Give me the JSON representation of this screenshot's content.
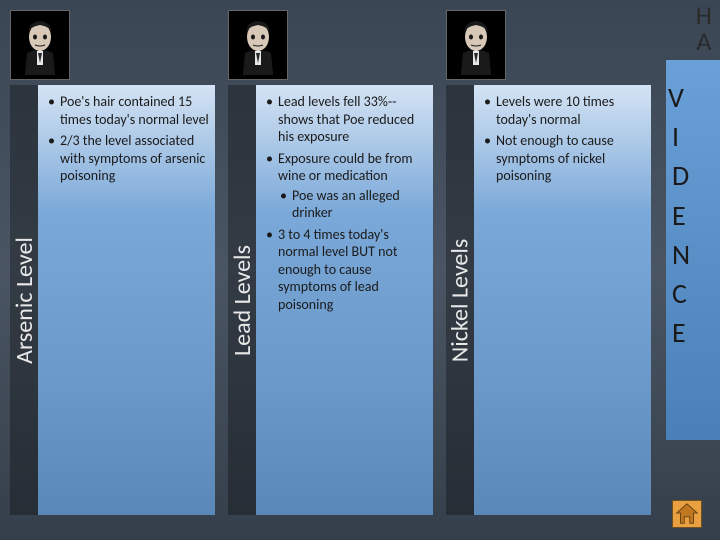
{
  "colors": {
    "page_bg_top": "#3a4654",
    "page_bg_bottom": "#353f4b",
    "column_gradient_top": "#d4e3f4",
    "column_gradient_bottom": "#5a88b8",
    "label_bg": "rgba(0,0,0,0.3)",
    "label_text": "#e8e8e8",
    "body_text": "#1a1a1a",
    "band_gradient_top": "#6aa0d8",
    "band_gradient_bottom": "#4a80b8",
    "home_fill": "#e8a040",
    "home_border": "#705020"
  },
  "typography": {
    "label_fontsize": 24,
    "bullet_fontsize": 14,
    "band_fontsize": 28,
    "top_right_fontsize": 26
  },
  "top_right": {
    "line1": "H",
    "line2": "A"
  },
  "right_band": {
    "letters": [
      "V",
      "I",
      "D",
      "E",
      "N",
      "C",
      "E"
    ]
  },
  "columns": [
    {
      "label": "Arsenic Level",
      "bullets": [
        {
          "text": "Poe's hair contained 15 times today's normal level"
        },
        {
          "text": "2/3 the level associated with symptoms of arsenic poisoning"
        }
      ]
    },
    {
      "label": "Lead Levels",
      "bullets": [
        {
          "text": "Lead levels fell 33%--shows that Poe reduced his exposure"
        },
        {
          "text": "Exposure could be from wine or medication",
          "sub": [
            "Poe was an alleged drinker"
          ]
        },
        {
          "text": "3 to 4 times today's normal level BUT not enough to cause symptoms of lead poisoning"
        }
      ]
    },
    {
      "label": "Nickel Levels",
      "bullets": [
        {
          "text": "Levels were 10 times today's normal"
        },
        {
          "text": "Not enough to cause symptoms of nickel poisoning"
        }
      ]
    }
  ]
}
